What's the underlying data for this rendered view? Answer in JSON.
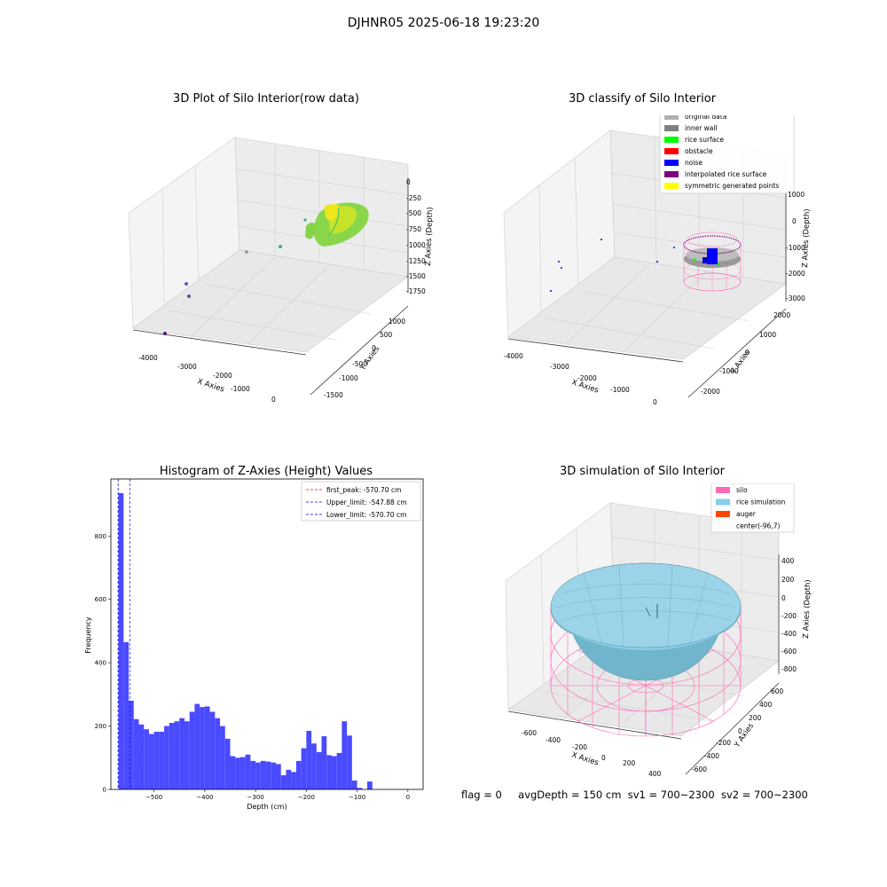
{
  "suptitle": "DJHNR05 2025-06-18 19:23:20",
  "footer": {
    "flag": "flag = 0",
    "avg_depth": "avgDepth = 150 cm",
    "sv1": "sv1 = 700~2300",
    "sv2": "sv2 = 700~2300"
  },
  "colors": {
    "original_data": "#b0b0b0",
    "inner_wall": "#808080",
    "rice_surface": "#00ff00",
    "obstacle": "#ff0000",
    "noise": "#0000ff",
    "interpolated_rice_surface": "#800080",
    "symmetric_generated_points": "#ffff00",
    "silo": "#ff69b4",
    "rice_simulation": "#87ceeb",
    "auger": "#ff4500",
    "histogram_bar": "#4a4aff"
  },
  "panels": {
    "raw": {
      "title": "3D Plot of Silo Interior(row data)",
      "xlabel": "X Axies",
      "ylabel": "Y Axies",
      "zlabel": "Z Axies (Depth)",
      "xticks": [
        "-4000",
        "-3000",
        "-2000",
        "-1000",
        "0"
      ],
      "yticks": [
        "1000",
        "500",
        "0",
        "-500",
        "-1000",
        "-1500"
      ],
      "zticks": [
        "0",
        "-250",
        "-500",
        "-750",
        "-1000",
        "-1250",
        "-1500",
        "-1750"
      ]
    },
    "classify": {
      "title": "3D classify of Silo Interior",
      "xlabel": "X Axies",
      "ylabel": "Y Axies",
      "zlabel": "Z Axies (Depth)",
      "xticks": [
        "-4000",
        "-3000",
        "-2000",
        "-1000",
        "0"
      ],
      "yticks": [
        "2000",
        "1000",
        "0",
        "-1000",
        "-2000"
      ],
      "zticks": [
        "1000",
        "0",
        "-1000",
        "-2000",
        "-3000"
      ],
      "legend": [
        {
          "label": "original data",
          "color_key": "original_data"
        },
        {
          "label": "inner wall",
          "color_key": "inner_wall"
        },
        {
          "label": "rice surface",
          "color_key": "rice_surface"
        },
        {
          "label": "obstacle",
          "color_key": "obstacle"
        },
        {
          "label": "noise",
          "color_key": "noise"
        },
        {
          "label": "interpolated rice surface",
          "color_key": "interpolated_rice_surface"
        },
        {
          "label": "symmetric generated points",
          "color_key": "symmetric_generated_points"
        }
      ]
    },
    "simulation": {
      "title": "3D simulation of Silo Interior",
      "xlabel": "X Axies",
      "ylabel": "Y Axies",
      "zlabel": "Z Axies (Depth)",
      "xticks": [
        "-600",
        "-400",
        "-200",
        "0",
        "200",
        "400"
      ],
      "yticks": [
        "600",
        "400",
        "200",
        "0",
        "-200",
        "-400",
        "-600"
      ],
      "zticks": [
        "400",
        "200",
        "0",
        "-200",
        "-400",
        "-600",
        "-800"
      ],
      "legend": [
        {
          "label": "silo",
          "color_key": "silo"
        },
        {
          "label": "rice simulation",
          "color_key": "rice_simulation"
        },
        {
          "label": "auger",
          "color_key": "auger"
        },
        {
          "label": "center(-96,7)",
          "color_key": ""
        }
      ]
    }
  },
  "chart_data": {
    "type": "bar",
    "title": "Histogram of Z-Axies (Height) Values",
    "xlabel": "Depth (cm)",
    "ylabel": "Frequency",
    "xlim": [
      -585,
      30
    ],
    "ylim": [
      0,
      980
    ],
    "xticks": [
      -500,
      -400,
      -300,
      -200,
      -100,
      0
    ],
    "yticks": [
      0,
      200,
      400,
      600,
      800
    ],
    "bin_width": 10,
    "bins_start": [
      -570,
      -560,
      -550,
      -540,
      -530,
      -520,
      -510,
      -500,
      -490,
      -480,
      -470,
      -460,
      -450,
      -440,
      -430,
      -420,
      -410,
      -400,
      -390,
      -380,
      -370,
      -360,
      -350,
      -340,
      -330,
      -320,
      -310,
      -300,
      -290,
      -280,
      -270,
      -260,
      -250,
      -240,
      -230,
      -220,
      -210,
      -200,
      -190,
      -180,
      -170,
      -160,
      -150,
      -140,
      -130,
      -120,
      -110,
      -100,
      -90,
      -80,
      -70,
      -60,
      -50,
      -40,
      -30,
      -20,
      -10,
      0,
      10,
      20
    ],
    "values": [
      935,
      465,
      280,
      222,
      205,
      190,
      175,
      182,
      182,
      200,
      210,
      215,
      225,
      215,
      245,
      270,
      260,
      262,
      245,
      225,
      200,
      160,
      105,
      100,
      102,
      110,
      90,
      85,
      90,
      88,
      85,
      80,
      45,
      62,
      55,
      90,
      130,
      185,
      145,
      118,
      168,
      108,
      105,
      115,
      215,
      170,
      28,
      5,
      0,
      25,
      0,
      0,
      0,
      0,
      0,
      0,
      0,
      0,
      0,
      0
    ],
    "lines": [
      {
        "label": "first_peak: -570.70 cm",
        "x": -570.7,
        "color": "#ff0000"
      },
      {
        "label": "Upper_limit: -547.88 cm",
        "x": -547.88,
        "color": "#0000ff"
      },
      {
        "label": "Lower_limit: -570.70 cm",
        "x": -570.7,
        "color": "#0000ff"
      }
    ],
    "legend_position": "upper right"
  }
}
